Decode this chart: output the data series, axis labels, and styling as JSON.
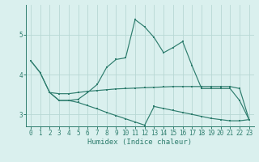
{
  "xlabel": "Humidex (Indice chaleur)",
  "bg_color": "#daf0ee",
  "grid_color": "#b8d8d4",
  "line_color": "#2e7d6e",
  "xlim": [
    -0.5,
    23.5
  ],
  "ylim": [
    2.7,
    5.75
  ],
  "yticks": [
    3,
    4,
    5
  ],
  "xticks": [
    0,
    1,
    2,
    3,
    4,
    5,
    6,
    7,
    8,
    9,
    10,
    11,
    12,
    13,
    14,
    15,
    16,
    17,
    18,
    19,
    20,
    21,
    22,
    23
  ],
  "line1_x": [
    0,
    1,
    2,
    3,
    4,
    5,
    6,
    7,
    8,
    9,
    10,
    11,
    12,
    13,
    14,
    15,
    16,
    17,
    18,
    19,
    20,
    21,
    22,
    23
  ],
  "line1_y": [
    4.35,
    4.05,
    3.55,
    3.52,
    3.52,
    3.55,
    3.58,
    3.6,
    3.62,
    3.64,
    3.65,
    3.66,
    3.67,
    3.68,
    3.69,
    3.7,
    3.7,
    3.7,
    3.7,
    3.7,
    3.7,
    3.7,
    3.65,
    2.87
  ],
  "line2_x": [
    0,
    1,
    2,
    3,
    4,
    5,
    6,
    7,
    8,
    9,
    10,
    11,
    12,
    13,
    14,
    15,
    16,
    17,
    18,
    19,
    20,
    21,
    22,
    23
  ],
  "line2_y": [
    4.35,
    4.05,
    3.55,
    3.35,
    3.35,
    3.38,
    3.55,
    3.75,
    4.18,
    4.38,
    4.42,
    5.38,
    5.2,
    4.93,
    4.55,
    4.68,
    4.83,
    4.22,
    3.65,
    3.65,
    3.65,
    3.65,
    3.35,
    2.87
  ],
  "line3_x": [
    2,
    3,
    4,
    5,
    6,
    7,
    8,
    9,
    10,
    11,
    12,
    13,
    14,
    15,
    16,
    17,
    18,
    19,
    20,
    21,
    22,
    23
  ],
  "line3_y": [
    3.55,
    3.35,
    3.35,
    3.3,
    3.22,
    3.14,
    3.05,
    2.97,
    2.89,
    2.81,
    2.73,
    3.2,
    3.15,
    3.1,
    3.05,
    3.0,
    2.95,
    2.9,
    2.87,
    2.84,
    2.84,
    2.87
  ]
}
